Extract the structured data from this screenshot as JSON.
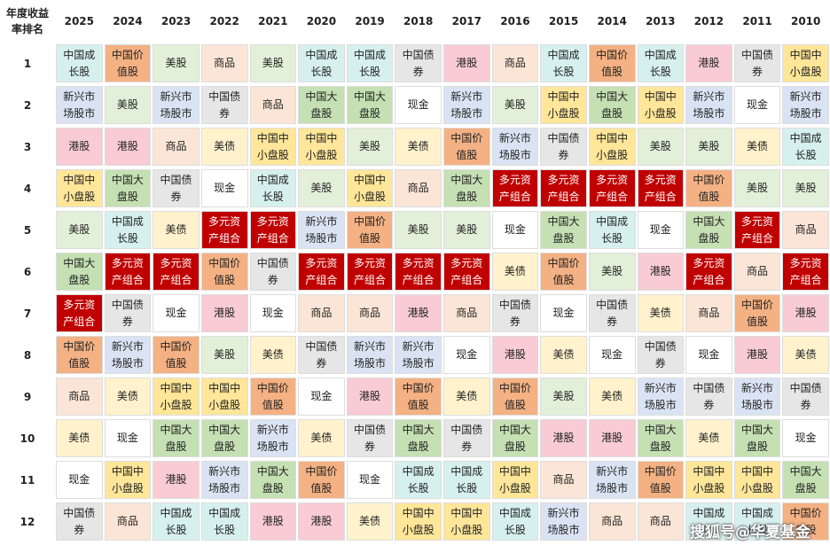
{
  "header": {
    "corner": "年度收益率排名",
    "years": [
      "2025",
      "2024",
      "2023",
      "2022",
      "2021",
      "2020",
      "2019",
      "2018",
      "2017",
      "2016",
      "2015",
      "2014",
      "2013",
      "2012",
      "2011",
      "2010"
    ]
  },
  "table": {
    "rows": [
      {
        "rank": "1",
        "cells": [
          "中国成长股",
          "中国价值股",
          "美股",
          "商品",
          "美股",
          "中国成长股",
          "中国成长股",
          "中国债券",
          "港股",
          "商品",
          "中国成长股",
          "中国价值股",
          "中国成长股",
          "港股",
          "中国债券",
          "中国中小盘股"
        ]
      },
      {
        "rank": "2",
        "cells": [
          "新兴市场股市",
          "美股",
          "新兴市场股市",
          "中国债券",
          "商品",
          "中国大盘股",
          "中国大盘股",
          "现金",
          "新兴市场股市",
          "美股",
          "中国中小盘股",
          "中国大盘股",
          "中国中小盘股",
          "新兴市场股市",
          "现金",
          "新兴市场股市"
        ]
      },
      {
        "rank": "3",
        "cells": [
          "港股",
          "港股",
          "商品",
          "美债",
          "中国中小盘股",
          "中国中小盘股",
          "美股",
          "美债",
          "中国价值股",
          "新兴市场股市",
          "中国债券",
          "中国中小盘股",
          "美股",
          "美股",
          "美债",
          "中国成长股"
        ]
      },
      {
        "rank": "4",
        "cells": [
          "中国中小盘股",
          "中国大盘股",
          "中国债券",
          "现金",
          "中国成长股",
          "美股",
          "中国中小盘股",
          "商品",
          "中国大盘股",
          "多元资产组合",
          "多元资产组合",
          "多元资产组合",
          "多元资产组合",
          "中国价值股",
          "美股",
          "美股"
        ]
      },
      {
        "rank": "5",
        "cells": [
          "美股",
          "中国成长股",
          "美债",
          "多元资产组合",
          "多元资产组合",
          "新兴市场股市",
          "中国价值股",
          "美股",
          "美股",
          "现金",
          "中国大盘股",
          "中国成长股",
          "现金",
          "中国大盘股",
          "多元资产组合",
          "商品"
        ]
      },
      {
        "rank": "6",
        "cells": [
          "中国大盘股",
          "多元资产组合",
          "多元资产组合",
          "中国价值股",
          "中国债券",
          "多元资产组合",
          "多元资产组合",
          "多元资产组合",
          "多元资产组合",
          "美债",
          "中国价值股",
          "美股",
          "港股",
          "多元资产组合",
          "商品",
          "多元资产组合"
        ]
      },
      {
        "rank": "7",
        "cells": [
          "多元资产组合",
          "中国债券",
          "现金",
          "港股",
          "现金",
          "商品",
          "商品",
          "港股",
          "商品",
          "中国债券",
          "现金",
          "中国债券",
          "美债",
          "商品",
          "中国价值股",
          "港股"
        ]
      },
      {
        "rank": "8",
        "cells": [
          "中国价值股",
          "新兴市场股市",
          "中国价值股",
          "美股",
          "美债",
          "中国债券",
          "新兴市场股市",
          "新兴市场股市",
          "现金",
          "港股",
          "美债",
          "现金",
          "中国债券",
          "现金",
          "港股",
          "美债"
        ]
      },
      {
        "rank": "9",
        "cells": [
          "商品",
          "美债",
          "中国中小盘股",
          "中国中小盘股",
          "中国价值股",
          "现金",
          "港股",
          "中国价值股",
          "美债",
          "中国价值股",
          "美股",
          "美债",
          "新兴市场股市",
          "中国债券",
          "新兴市场股市",
          "中国债券"
        ]
      },
      {
        "rank": "10",
        "cells": [
          "美债",
          "现金",
          "中国大盘股",
          "中国大盘股",
          "新兴市场股市",
          "美债",
          "中国债券",
          "中国大盘股",
          "中国债券",
          "中国大盘股",
          "港股",
          "港股",
          "中国大盘股",
          "美债",
          "中国大盘股",
          "现金"
        ]
      },
      {
        "rank": "11",
        "cells": [
          "现金",
          "中国中小盘股",
          "港股",
          "新兴市场股市",
          "中国大盘股",
          "中国价值股",
          "现金",
          "中国成长股",
          "中国成长股",
          "中国中小盘股",
          "商品",
          "新兴市场股市",
          "中国价值股",
          "中国中小盘股",
          "中国中小盘股",
          "中国大盘股"
        ]
      },
      {
        "rank": "12",
        "cells": [
          "中国债券",
          "商品",
          "中国成长股",
          "中国成长股",
          "港股",
          "港股",
          "美债",
          "中国中小盘股",
          "中国中小盘股",
          "中国成长股",
          "新兴市场股市",
          "商品",
          "商品",
          "中国成长股",
          "中国成长股",
          "中国价值股"
        ]
      }
    ]
  },
  "colors": {
    "中国成长股": {
      "bg": "#d6f0ee",
      "fg": "#222"
    },
    "中国价值股": {
      "bg": "#f4b183",
      "fg": "#222"
    },
    "美股": {
      "bg": "#e2efd9",
      "fg": "#222"
    },
    "商品": {
      "bg": "#fbe5d6",
      "fg": "#222"
    },
    "中国债券": {
      "bg": "#e7e6e6",
      "fg": "#222"
    },
    "中国中小盘股": {
      "bg": "#ffe699",
      "fg": "#222"
    },
    "新兴市场股市": {
      "bg": "#dae3f3",
      "fg": "#222"
    },
    "港股": {
      "bg": "#f8cbd5",
      "fg": "#222"
    },
    "中国大盘股": {
      "bg": "#c5e0b3",
      "fg": "#222"
    },
    "现金": {
      "bg": "#ffffff",
      "fg": "#222"
    },
    "美债": {
      "bg": "#fff2cc",
      "fg": "#222"
    },
    "多元资产组合": {
      "bg": "#c00000",
      "fg": "#ffffff"
    }
  },
  "watermark": "搜狐号@华夏基金"
}
